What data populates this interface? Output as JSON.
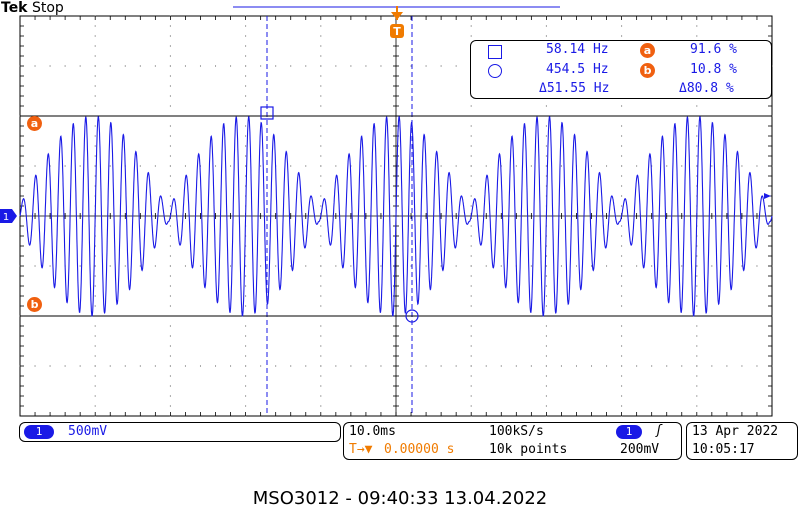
{
  "header": {
    "brand": "Tek",
    "status": "Stop"
  },
  "trigger_marker": "T",
  "measurements": {
    "cursor1": {
      "icon": "square-icon",
      "freq": "58.14 Hz",
      "badge": "a",
      "value": "91.6 %"
    },
    "cursor2": {
      "icon": "circle-icon",
      "freq": "454.5 Hz",
      "badge": "b",
      "value": "10.8 %"
    },
    "delta_freq": "Δ51.55 Hz",
    "delta_value": "Δ80.8 %"
  },
  "cursor_labels": {
    "a": "a",
    "b": "b"
  },
  "channel_marker": "1",
  "channel": {
    "number": "1",
    "scale": "500mV"
  },
  "timebase": {
    "scale": "10.0ms",
    "trigger_offset": "0.00000 s",
    "offset_icon": "T→▼"
  },
  "acquisition": {
    "sample_rate": "100kS/s",
    "record_length": "10k points"
  },
  "trigger": {
    "channel": "1",
    "slope": "ʃ",
    "level": "200mV"
  },
  "datetime": {
    "date": "13 Apr  2022",
    "time": "10:05:17"
  },
  "caption": "MSO3012 - 09:40:33    13.04.2022",
  "colors": {
    "trace": "#1a1ae6",
    "accent": "#f07b00",
    "badge": "#f06010"
  },
  "waveform": {
    "carrier_cycles": 60,
    "envelope_cycles": 5,
    "cursor_a_level": 0.5,
    "cursor_b_level": -0.5
  }
}
